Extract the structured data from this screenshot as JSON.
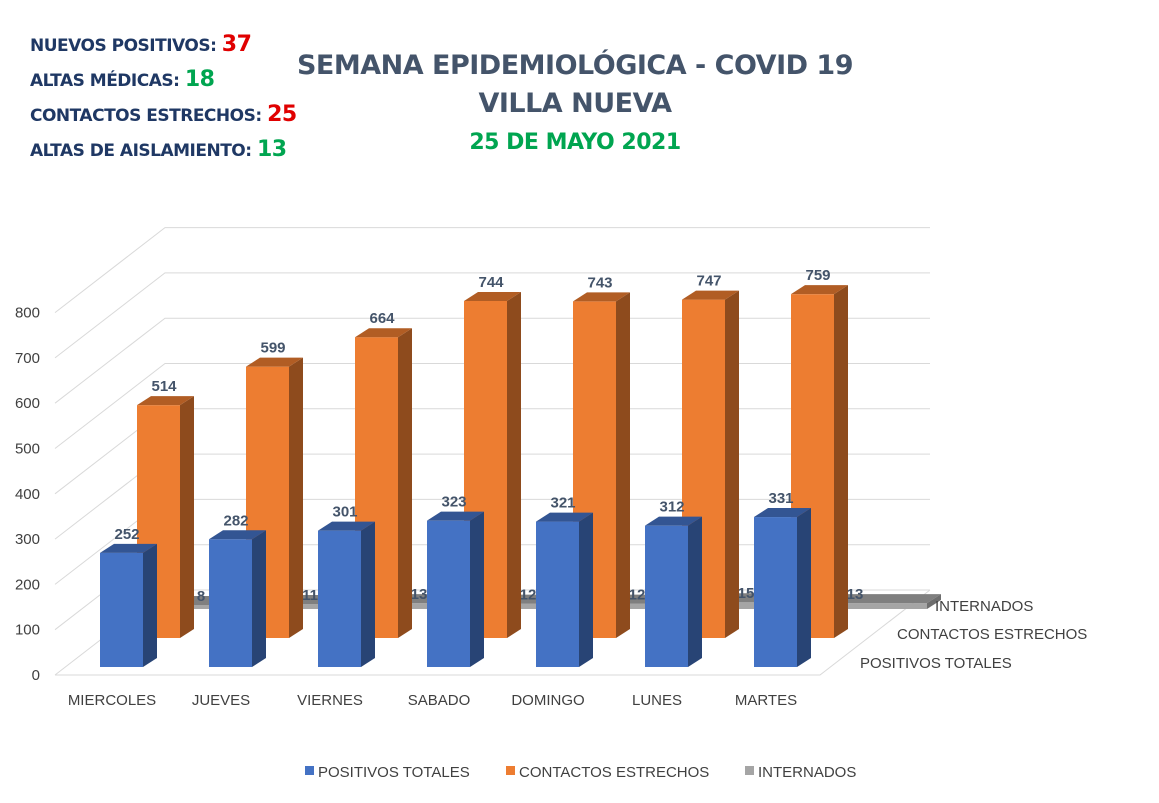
{
  "stats": [
    {
      "label": "NUEVOS POSITIVOS:",
      "value": "37",
      "color": "#e00000"
    },
    {
      "label": "ALTAS MÉDICAS:",
      "value": "18",
      "color": "#00a550"
    },
    {
      "label": "CONTACTOS ESTRECHOS:",
      "value": "25",
      "color": "#e00000"
    },
    {
      "label": "ALTAS DE AISLAMIENTO:",
      "value": "13",
      "color": "#00a550"
    }
  ],
  "chart_data": {
    "type": "bar",
    "title": "SEMANA EPIDEMIOLÓGICA - COVID 19",
    "subtitle": "VILLA NUEVA",
    "date": "25 DE MAYO 2021",
    "categories": [
      "MIERCOLES",
      "JUEVES",
      "VIERNES",
      "SABADO",
      "DOMINGO",
      "LUNES",
      "MARTES"
    ],
    "series": [
      {
        "name": "POSITIVOS TOTALES",
        "color": "#4472c4",
        "values": [
          252,
          282,
          301,
          323,
          321,
          312,
          331
        ]
      },
      {
        "name": "CONTACTOS ESTRECHOS",
        "color": "#ed7d31",
        "values": [
          514,
          599,
          664,
          744,
          743,
          747,
          759
        ]
      },
      {
        "name": "INTERNADOS",
        "color": "#a5a5a5",
        "values": [
          8,
          11,
          13,
          12,
          12,
          15,
          13
        ]
      }
    ],
    "yticks": [
      0,
      100,
      200,
      300,
      400,
      500,
      600,
      700,
      800
    ],
    "ylim": [
      0,
      800
    ],
    "grid": true,
    "legend": "bottom",
    "style": "3d-column"
  }
}
